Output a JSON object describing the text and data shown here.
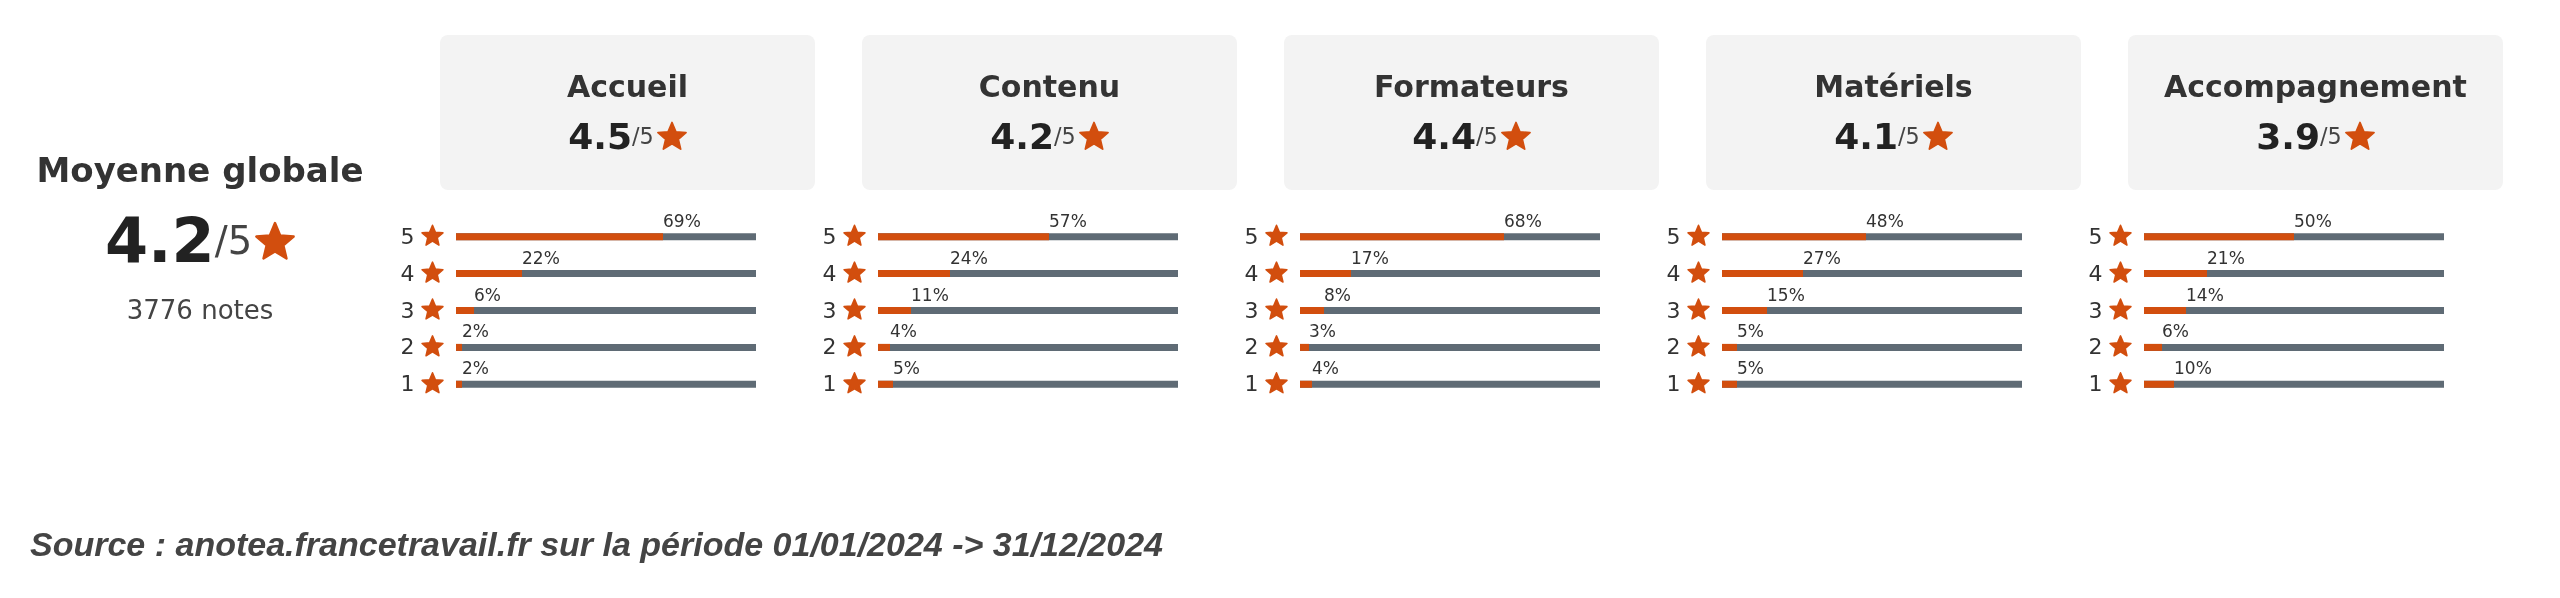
{
  "chart_data": [
    {
      "type": "other",
      "title": "Moyenne globale",
      "subtitle": "4.2/5",
      "annotations": [
        "3776 notes",
        "Source : anotea.francetravail.fr sur la période 01/01/2024 -> 31/12/2024"
      ]
    },
    {
      "type": "bar",
      "orientation": "horizontal",
      "title": "Accueil",
      "subtitle": "4.5/5",
      "categories": [
        "5",
        "4",
        "3",
        "2",
        "1"
      ],
      "values": [
        69,
        22,
        6,
        2,
        2
      ],
      "value_labels": [
        "69%",
        "22%",
        "6%",
        "2%",
        "2%"
      ],
      "color": "#d24e0e",
      "xlim": [
        0,
        100
      ],
      "tick_labels": "y"
    },
    {
      "type": "bar",
      "orientation": "horizontal",
      "title": "Contenu",
      "subtitle": "4.2/5",
      "categories": [
        "5",
        "4",
        "3",
        "2",
        "1"
      ],
      "values": [
        57,
        24,
        11,
        4,
        5
      ],
      "value_labels": [
        "57%",
        "24%",
        "11%",
        "4%",
        "5%"
      ],
      "color": "#d24e0e",
      "xlim": [
        0,
        100
      ],
      "tick_labels": "y"
    },
    {
      "type": "bar",
      "orientation": "horizontal",
      "title": "Formateurs",
      "subtitle": "4.4/5",
      "categories": [
        "5",
        "4",
        "3",
        "2",
        "1"
      ],
      "values": [
        68,
        17,
        8,
        3,
        4
      ],
      "value_labels": [
        "68%",
        "17%",
        "8%",
        "3%",
        "4%"
      ],
      "color": "#d24e0e",
      "xlim": [
        0,
        100
      ],
      "tick_labels": "y"
    },
    {
      "type": "bar",
      "orientation": "horizontal",
      "title": "Matériels",
      "subtitle": "4.1/5",
      "categories": [
        "5",
        "4",
        "3",
        "2",
        "1"
      ],
      "values": [
        48,
        27,
        15,
        5,
        5
      ],
      "value_labels": [
        "48%",
        "27%",
        "15%",
        "5%",
        "5%"
      ],
      "color": "#d24e0e",
      "xlim": [
        0,
        100
      ],
      "tick_labels": "y"
    },
    {
      "type": "bar",
      "orientation": "horizontal",
      "title": "Accompagnement",
      "subtitle": "3.9/5",
      "categories": [
        "5",
        "4",
        "3",
        "2",
        "1"
      ],
      "values": [
        50,
        21,
        14,
        6,
        10
      ],
      "value_labels": [
        "50%",
        "21%",
        "14%",
        "6%",
        "10%"
      ],
      "color": "#d24e0e",
      "xlim": [
        0,
        100
      ],
      "tick_labels": "y"
    }
  ]
}
